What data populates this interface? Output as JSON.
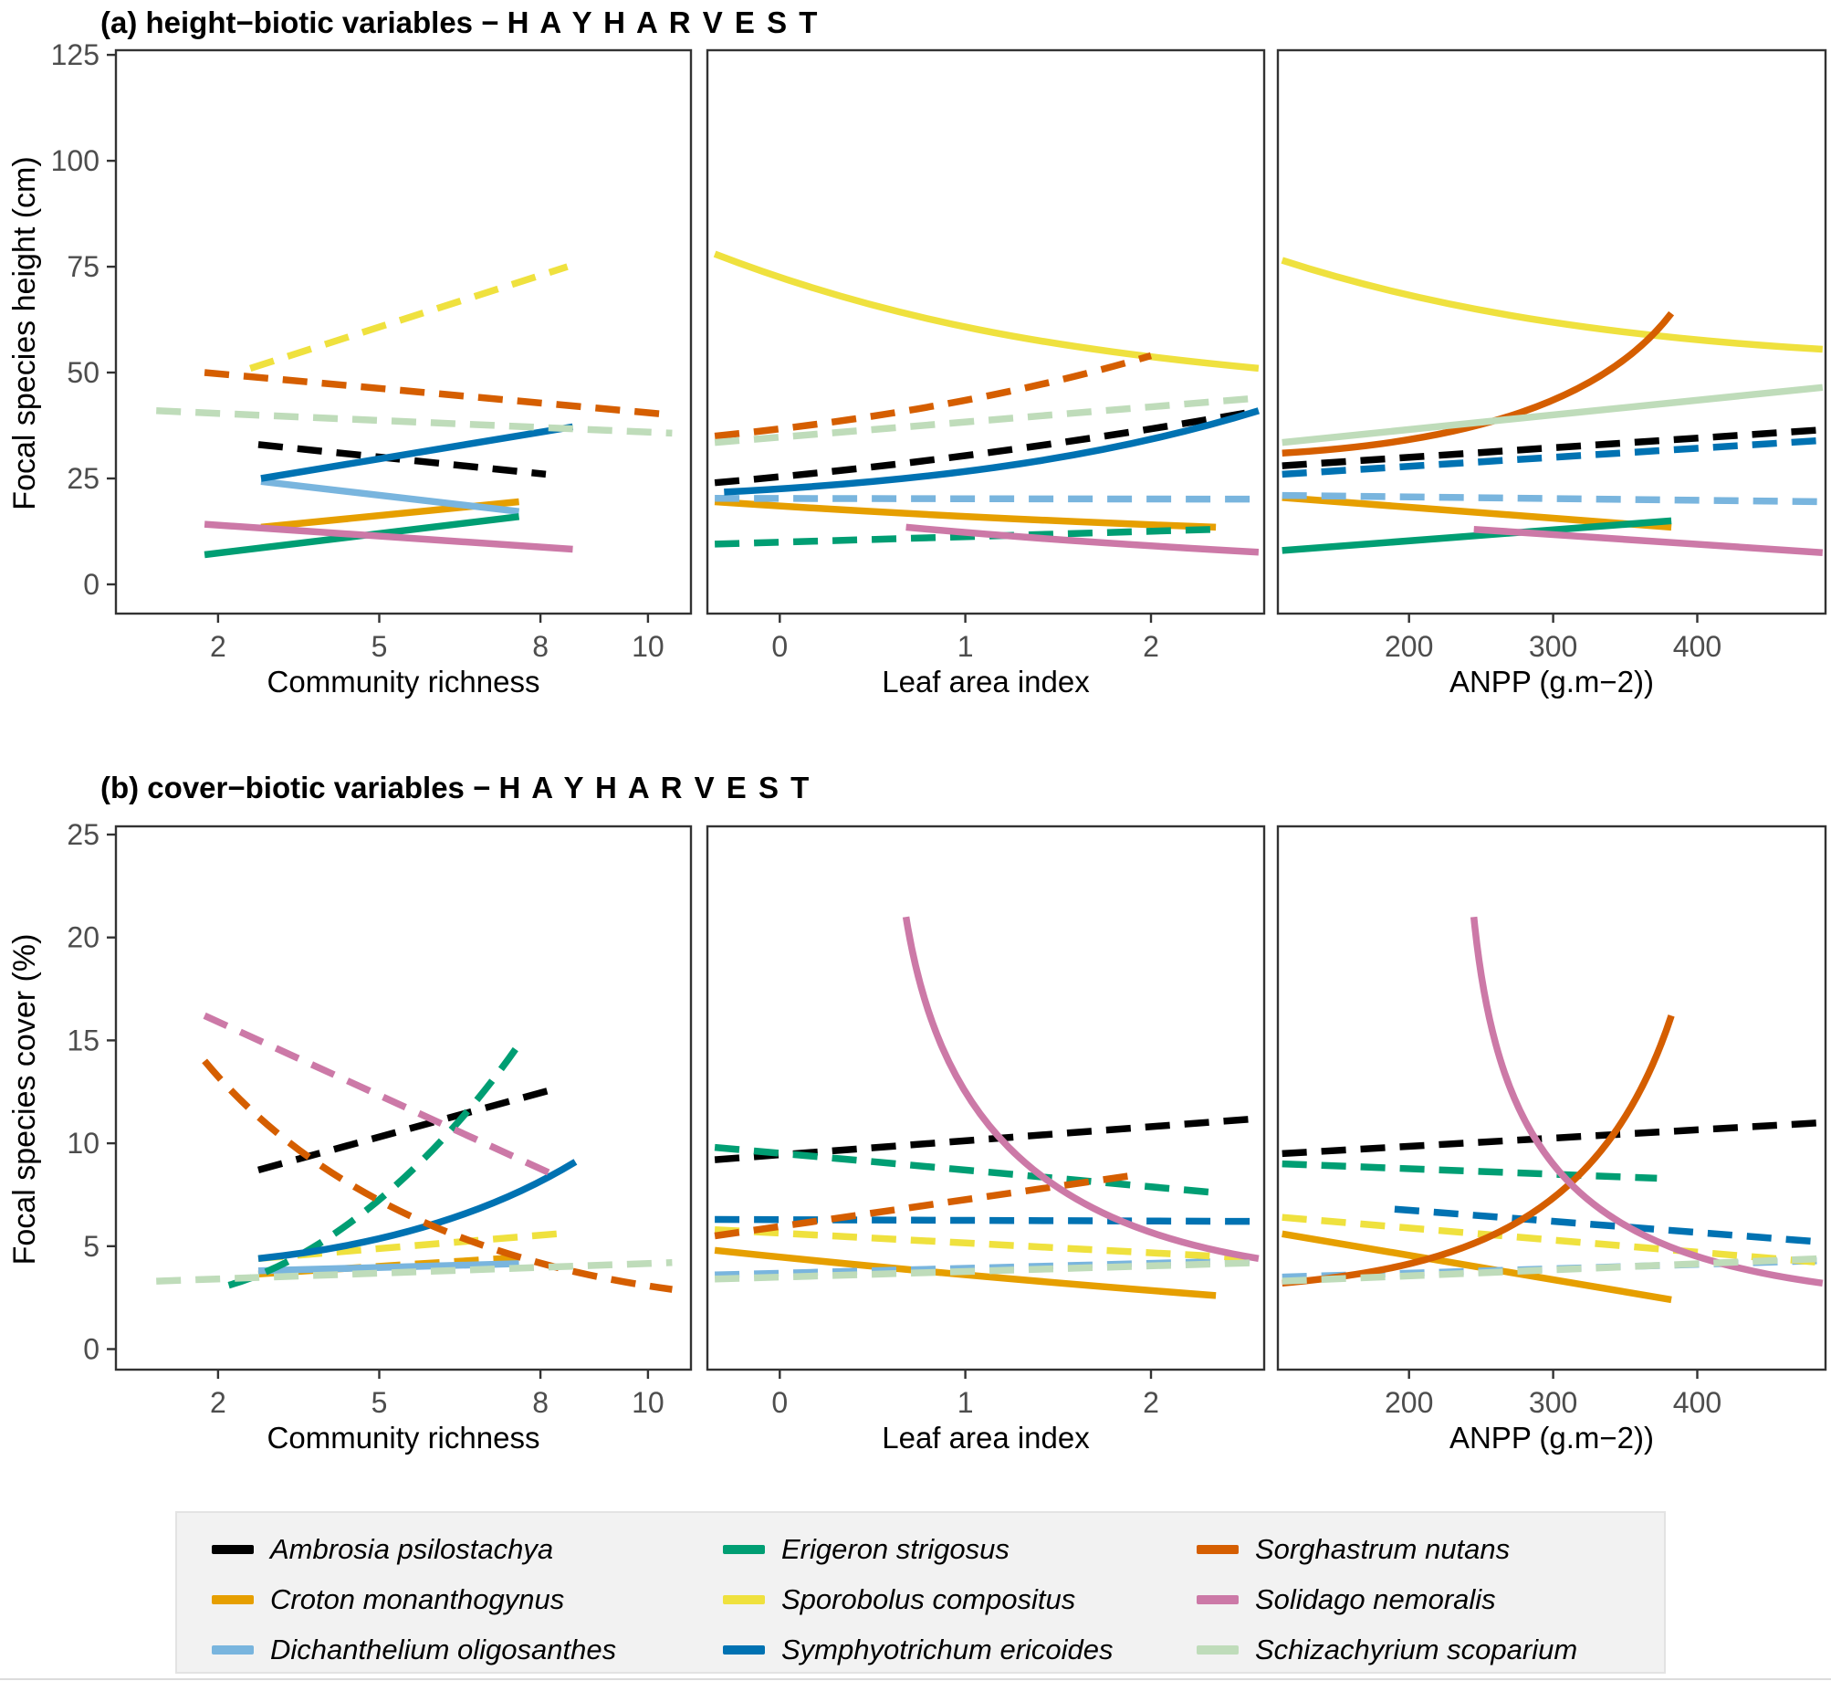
{
  "colors": {
    "axis": "#333333",
    "tick_label": "#4d4d4d",
    "legend_bg": "#f2f2f2",
    "legend_border": "#e3e3e3"
  },
  "species": [
    {
      "id": "ambrosia",
      "label": "Ambrosia psilostachya",
      "color": "#000000"
    },
    {
      "id": "croton",
      "label": "Croton monanthogynus",
      "color": "#E69F00"
    },
    {
      "id": "dichanthelium",
      "label": "Dichanthelium oligosanthes",
      "color": "#79B5DE"
    },
    {
      "id": "erigeron",
      "label": "Erigeron strigosus",
      "color": "#009E73"
    },
    {
      "id": "sporobolus",
      "label": "Sporobolus compositus",
      "color": "#EFE13E"
    },
    {
      "id": "symphyotrichum",
      "label": "Symphyotrichum ericoides",
      "color": "#0072B2"
    },
    {
      "id": "sorghastrum",
      "label": "Sorghastrum nutans",
      "color": "#D55E00"
    },
    {
      "id": "solidago",
      "label": "Solidago nemoralis",
      "color": "#CC79A7"
    },
    {
      "id": "schizachyrium",
      "label": "Schizachyrium scoparium",
      "color": "#BFDCBA"
    }
  ],
  "panels": {
    "a": {
      "title_main": "(a) height−biotic variables − ",
      "title_caps": "H A Y  H A R V E S T",
      "ylabel": "Focal species height (cm)",
      "yticks": [
        0,
        25,
        50,
        75,
        100,
        125
      ],
      "ylim": [
        0,
        125
      ]
    },
    "b": {
      "title_main": "(b) cover−biotic variables − ",
      "title_caps": "H A Y  H A R V E S T",
      "ylabel": "Focal species cover (%)",
      "yticks": [
        0,
        5,
        10,
        15,
        20,
        25
      ],
      "ylim": [
        0,
        25
      ]
    }
  },
  "xlabels": [
    "Community richness",
    "Leaf area index",
    "ANPP (g.m−2))"
  ],
  "chart_data": [
    {
      "type": "line",
      "panel": "a",
      "xlabel": "Community richness",
      "xlim": [
        0.1,
        10.8
      ],
      "xticks": [
        2,
        5,
        8,
        10
      ],
      "series": [
        {
          "species": "ambrosia",
          "style": "dashed",
          "pts": [
            [
              2.75,
              33
            ],
            [
              8.1,
              26
            ]
          ]
        },
        {
          "species": "croton",
          "style": "solid",
          "pts": [
            [
              2.8,
              13.5
            ],
            [
              7.6,
              19.5
            ]
          ]
        },
        {
          "species": "dichanthelium",
          "style": "solid",
          "pts": [
            [
              2.8,
              24.3
            ],
            [
              7.6,
              17.2
            ]
          ]
        },
        {
          "species": "erigeron",
          "style": "solid",
          "pts": [
            [
              1.75,
              7
            ],
            [
              7.6,
              16
            ]
          ]
        },
        {
          "species": "sporobolus",
          "style": "dashed",
          "pts": [
            [
              2.6,
              51
            ],
            [
              8.5,
              75
            ]
          ]
        },
        {
          "species": "symphyotrichum",
          "style": "solid",
          "pts": [
            [
              2.8,
              25
            ],
            [
              8.6,
              37.2
            ]
          ]
        },
        {
          "species": "sorghastrum",
          "style": "dashed",
          "pts": [
            [
              1.75,
              50
            ],
            [
              10.45,
              40
            ]
          ]
        },
        {
          "species": "solidago",
          "style": "solid",
          "pts": [
            [
              1.75,
              14.2
            ],
            [
              8.6,
              8.3
            ]
          ]
        },
        {
          "species": "schizachyrium",
          "style": "dashed",
          "pts": [
            [
              0.85,
              41
            ],
            [
              10.45,
              35.7
            ]
          ]
        }
      ]
    },
    {
      "type": "line",
      "panel": "a",
      "xlabel": "Leaf area index",
      "xlim": [
        -0.39,
        2.61
      ],
      "xticks": [
        0,
        1,
        2
      ],
      "series": [
        {
          "species": "ambrosia",
          "style": "dashed",
          "pts": [
            [
              -0.35,
              24
            ],
            [
              1.1,
              29.5
            ],
            [
              2.58,
              41
            ]
          ]
        },
        {
          "species": "croton",
          "style": "solid",
          "pts": [
            [
              -0.35,
              19.5
            ],
            [
              0.9,
              15.8
            ],
            [
              2.35,
              13.5
            ]
          ]
        },
        {
          "species": "dichanthelium",
          "style": "dashed",
          "pts": [
            [
              -0.35,
              20.3
            ],
            [
              2.58,
              20.1
            ]
          ]
        },
        {
          "species": "erigeron",
          "style": "dashed",
          "pts": [
            [
              -0.35,
              9.5
            ],
            [
              2.35,
              13
            ]
          ]
        },
        {
          "species": "sporobolus",
          "style": "solid",
          "pts": [
            [
              -0.35,
              78
            ],
            [
              0.6,
              62
            ],
            [
              1.5,
              55.5
            ],
            [
              2.58,
              51
            ]
          ]
        },
        {
          "species": "symphyotrichum",
          "style": "solid",
          "pts": [
            [
              -0.3,
              21.8
            ],
            [
              0.9,
              24.5
            ],
            [
              1.8,
              30.5
            ],
            [
              2.58,
              41
            ]
          ]
        },
        {
          "species": "sorghastrum",
          "style": "dashed",
          "pts": [
            [
              -0.35,
              35
            ],
            [
              1.0,
              41
            ],
            [
              2.0,
              54
            ]
          ]
        },
        {
          "species": "solidago",
          "style": "solid",
          "pts": [
            [
              0.68,
              13.5
            ],
            [
              1.5,
              10.2
            ],
            [
              2.58,
              7.6
            ]
          ]
        },
        {
          "species": "schizachyrium",
          "style": "dashed",
          "pts": [
            [
              -0.35,
              33.5
            ],
            [
              2.58,
              44
            ]
          ]
        }
      ]
    },
    {
      "type": "line",
      "panel": "a",
      "xlabel": "ANPP (g.m−2))",
      "xlim": [
        109,
        489
      ],
      "xticks": [
        200,
        300,
        400
      ],
      "series": [
        {
          "species": "ambrosia",
          "style": "dashed",
          "pts": [
            [
              112,
              28
            ],
            [
              487,
              36.5
            ]
          ]
        },
        {
          "species": "croton",
          "style": "solid",
          "pts": [
            [
              112,
              20.5
            ],
            [
              382,
              13.5
            ]
          ]
        },
        {
          "species": "dichanthelium",
          "style": "dashed",
          "pts": [
            [
              112,
              21
            ],
            [
              487,
              19.5
            ]
          ]
        },
        {
          "species": "erigeron",
          "style": "solid",
          "pts": [
            [
              112,
              8
            ],
            [
              382,
              15
            ]
          ]
        },
        {
          "species": "sporobolus",
          "style": "solid",
          "pts": [
            [
              112,
              76.5
            ],
            [
              230,
              63.5
            ],
            [
              360,
              58
            ],
            [
              487,
              55.5
            ]
          ]
        },
        {
          "species": "symphyotrichum",
          "style": "dashed",
          "pts": [
            [
              112,
              26
            ],
            [
              487,
              34
            ]
          ]
        },
        {
          "species": "sorghastrum",
          "style": "solid",
          "pts": [
            [
              112,
              31
            ],
            [
              240,
              33.5
            ],
            [
              335,
              43
            ],
            [
              382,
              64
            ]
          ]
        },
        {
          "species": "solidago",
          "style": "solid",
          "pts": [
            [
              245,
              13
            ],
            [
              487,
              7.5
            ]
          ]
        },
        {
          "species": "schizachyrium",
          "style": "solid",
          "pts": [
            [
              112,
              33.5
            ],
            [
              487,
              46.5
            ]
          ]
        }
      ]
    },
    {
      "type": "line",
      "panel": "b",
      "xlabel": "Community richness",
      "xlim": [
        0.1,
        10.8
      ],
      "xticks": [
        2,
        5,
        8,
        10
      ],
      "series": [
        {
          "species": "ambrosia",
          "style": "dashed",
          "pts": [
            [
              2.75,
              8.7
            ],
            [
              8.35,
              12.7
            ]
          ]
        },
        {
          "species": "croton",
          "style": "dashed",
          "pts": [
            [
              2.75,
              3.65
            ],
            [
              7.6,
              4.45
            ]
          ]
        },
        {
          "species": "dichanthelium",
          "style": "solid",
          "pts": [
            [
              2.75,
              3.8
            ],
            [
              7.6,
              4.15
            ]
          ]
        },
        {
          "species": "erigeron",
          "style": "dashed",
          "pts": [
            [
              2.2,
              3.1
            ],
            [
              4.2,
              4.6
            ],
            [
              6.2,
              9.5
            ],
            [
              7.65,
              15
            ]
          ]
        },
        {
          "species": "sporobolus",
          "style": "dashed",
          "pts": [
            [
              2.75,
              4.4
            ],
            [
              8.3,
              5.6
            ]
          ]
        },
        {
          "species": "symphyotrichum",
          "style": "solid",
          "pts": [
            [
              2.75,
              4.4
            ],
            [
              5.3,
              5.1
            ],
            [
              7.2,
              6.8
            ],
            [
              8.65,
              9.1
            ]
          ]
        },
        {
          "species": "sorghastrum",
          "style": "dashed",
          "pts": [
            [
              1.75,
              14
            ],
            [
              3.6,
              8.2
            ],
            [
              6.5,
              4.3
            ],
            [
              10.45,
              2.9
            ]
          ]
        },
        {
          "species": "solidago",
          "style": "dashed",
          "pts": [
            [
              1.75,
              16.2
            ],
            [
              8.3,
              8.4
            ]
          ]
        },
        {
          "species": "schizachyrium",
          "style": "dashed",
          "pts": [
            [
              0.85,
              3.3
            ],
            [
              10.45,
              4.2
            ]
          ]
        }
      ]
    },
    {
      "type": "line",
      "panel": "b",
      "xlabel": "Leaf area index",
      "xlim": [
        -0.39,
        2.61
      ],
      "xticks": [
        0,
        1,
        2
      ],
      "series": [
        {
          "species": "ambrosia",
          "style": "dashed",
          "pts": [
            [
              -0.35,
              9.2
            ],
            [
              2.58,
              11.2
            ]
          ]
        },
        {
          "species": "croton",
          "style": "solid",
          "pts": [
            [
              -0.35,
              4.8
            ],
            [
              0.9,
              3.6
            ],
            [
              2.35,
              2.6
            ]
          ]
        },
        {
          "species": "dichanthelium",
          "style": "dashed",
          "pts": [
            [
              -0.35,
              3.6
            ],
            [
              2.58,
              4.3
            ]
          ]
        },
        {
          "species": "erigeron",
          "style": "dashed",
          "pts": [
            [
              -0.35,
              9.8
            ],
            [
              2.35,
              7.6
            ]
          ]
        },
        {
          "species": "sporobolus",
          "style": "dashed",
          "pts": [
            [
              -0.35,
              5.8
            ],
            [
              2.58,
              4.4
            ]
          ]
        },
        {
          "species": "symphyotrichum",
          "style": "dashed",
          "pts": [
            [
              -0.35,
              6.3
            ],
            [
              2.58,
              6.2
            ]
          ]
        },
        {
          "species": "sorghastrum",
          "style": "dashed",
          "pts": [
            [
              -0.35,
              5.5
            ],
            [
              1.95,
              8.5
            ]
          ]
        },
        {
          "species": "solidago",
          "style": "solid",
          "pts": [
            [
              0.68,
              21
            ],
            [
              0.85,
              11.5
            ],
            [
              1.35,
              6.2
            ],
            [
              2.58,
              4.4
            ]
          ]
        },
        {
          "species": "schizachyrium",
          "style": "dashed",
          "pts": [
            [
              -0.35,
              3.4
            ],
            [
              2.58,
              4.2
            ]
          ]
        }
      ]
    },
    {
      "type": "line",
      "panel": "b",
      "xlabel": "ANPP (g.m−2))",
      "xlim": [
        109,
        489
      ],
      "xticks": [
        200,
        300,
        400
      ],
      "series": [
        {
          "species": "ambrosia",
          "style": "dashed",
          "pts": [
            [
              112,
              9.5
            ],
            [
              487,
              11
            ]
          ]
        },
        {
          "species": "croton",
          "style": "solid",
          "pts": [
            [
              112,
              5.6
            ],
            [
              382,
              2.4
            ]
          ]
        },
        {
          "species": "dichanthelium",
          "style": "dashed",
          "pts": [
            [
              112,
              3.5
            ],
            [
              487,
              4.3
            ]
          ]
        },
        {
          "species": "erigeron",
          "style": "dashed",
          "pts": [
            [
              112,
              9
            ],
            [
              372,
              8.3
            ]
          ]
        },
        {
          "species": "sporobolus",
          "style": "dashed",
          "pts": [
            [
              112,
              6.4
            ],
            [
              487,
              4.2
            ]
          ]
        },
        {
          "species": "symphyotrichum",
          "style": "dashed",
          "pts": [
            [
              190,
              6.8
            ],
            [
              487,
              5.2
            ]
          ]
        },
        {
          "species": "sorghastrum",
          "style": "solid",
          "pts": [
            [
              112,
              3.2
            ],
            [
              240,
              4.0
            ],
            [
              335,
              6.2
            ],
            [
              382,
              16.2
            ]
          ]
        },
        {
          "species": "solidago",
          "style": "solid",
          "pts": [
            [
              245,
              21
            ],
            [
              262,
              9
            ],
            [
              320,
              4.8
            ],
            [
              487,
              3.2
            ]
          ]
        },
        {
          "species": "schizachyrium",
          "style": "dashed",
          "pts": [
            [
              112,
              3.3
            ],
            [
              487,
              4.4
            ]
          ]
        }
      ]
    }
  ],
  "legend": {
    "columns": [
      [
        0,
        1,
        2
      ],
      [
        3,
        4,
        5
      ],
      [
        6,
        7,
        8
      ]
    ]
  }
}
